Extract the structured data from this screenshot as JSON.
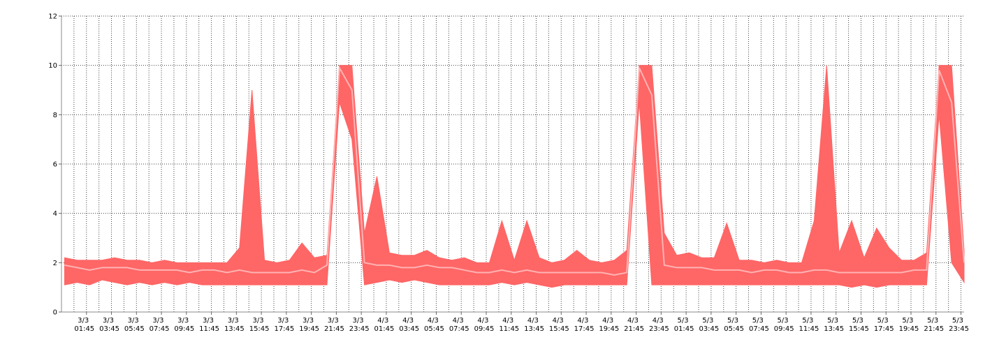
{
  "chart_data": {
    "type": "band",
    "x": [
      0,
      1,
      2,
      3,
      4,
      5,
      6,
      7,
      8,
      9,
      10,
      11,
      12,
      13,
      14,
      15,
      16,
      17,
      18,
      19,
      20,
      21,
      22,
      23,
      24,
      25,
      26,
      27,
      28,
      29,
      30,
      31,
      32,
      33,
      34,
      35,
      36,
      37,
      38,
      39,
      40,
      41,
      42,
      43,
      44,
      45,
      46,
      47,
      48,
      49,
      50,
      51,
      52,
      53,
      54,
      55,
      56,
      57,
      58,
      59,
      60,
      61,
      62,
      63,
      64,
      65,
      66,
      67,
      68,
      69,
      70,
      71,
      72
    ],
    "band": {
      "color": "#ff6666",
      "upper": [
        2.2,
        2.1,
        2.1,
        2.1,
        2.2,
        2.1,
        2.1,
        2.0,
        2.1,
        2.0,
        2.0,
        2.0,
        2.0,
        2.0,
        2.6,
        9.0,
        2.1,
        2.0,
        2.1,
        2.8,
        2.2,
        2.3,
        10,
        10,
        3.2,
        5.5,
        2.4,
        2.3,
        2.3,
        2.5,
        2.2,
        2.1,
        2.2,
        2.0,
        2.0,
        3.7,
        2.1,
        3.7,
        2.2,
        2.0,
        2.1,
        2.5,
        2.1,
        2.0,
        2.1,
        2.5,
        10,
        10,
        3.2,
        2.3,
        2.4,
        2.2,
        2.2,
        3.6,
        2.1,
        2.1,
        2.0,
        2.1,
        2.0,
        2.0,
        3.7,
        10,
        2.4,
        3.7,
        2.2,
        3.4,
        2.6,
        2.1,
        2.1,
        2.4,
        10,
        10,
        2.5
      ],
      "lower": [
        1.1,
        1.2,
        1.1,
        1.3,
        1.2,
        1.1,
        1.2,
        1.1,
        1.2,
        1.1,
        1.2,
        1.1,
        1.1,
        1.1,
        1.1,
        1.1,
        1.1,
        1.1,
        1.1,
        1.1,
        1.1,
        1.1,
        8.5,
        7.0,
        1.1,
        1.2,
        1.3,
        1.2,
        1.3,
        1.2,
        1.1,
        1.1,
        1.1,
        1.1,
        1.1,
        1.2,
        1.1,
        1.2,
        1.1,
        1.0,
        1.1,
        1.1,
        1.1,
        1.1,
        1.1,
        1.1,
        8.5,
        1.1,
        1.1,
        1.1,
        1.1,
        1.1,
        1.1,
        1.1,
        1.1,
        1.1,
        1.1,
        1.1,
        1.1,
        1.1,
        1.1,
        1.1,
        1.1,
        1.0,
        1.1,
        1.0,
        1.1,
        1.1,
        1.1,
        1.1,
        8.0,
        2.0,
        1.2
      ]
    },
    "series": [
      {
        "color": "#ffb3b3",
        "values": [
          1.9,
          1.8,
          1.7,
          1.8,
          1.8,
          1.8,
          1.7,
          1.7,
          1.7,
          1.7,
          1.6,
          1.7,
          1.7,
          1.6,
          1.7,
          1.6,
          1.6,
          1.6,
          1.6,
          1.7,
          1.6,
          1.9,
          9.9,
          9.0,
          2.0,
          1.9,
          1.9,
          1.8,
          1.8,
          1.9,
          1.8,
          1.8,
          1.7,
          1.6,
          1.6,
          1.7,
          1.6,
          1.7,
          1.6,
          1.6,
          1.6,
          1.6,
          1.6,
          1.6,
          1.5,
          1.6,
          9.9,
          8.8,
          1.9,
          1.8,
          1.8,
          1.8,
          1.7,
          1.7,
          1.7,
          1.6,
          1.7,
          1.7,
          1.6,
          1.6,
          1.7,
          1.7,
          1.6,
          1.6,
          1.6,
          1.6,
          1.6,
          1.6,
          1.7,
          1.7,
          9.8,
          8.5,
          2.0
        ]
      }
    ],
    "xlim": [
      -0.25,
      72
    ],
    "xticks": [
      {
        "value": 1.75,
        "label": "3/3 01:45"
      },
      {
        "value": 3.75,
        "label": "3/3 03:45"
      },
      {
        "value": 5.75,
        "label": "3/3 05:45"
      },
      {
        "value": 7.75,
        "label": "3/3 07:45"
      },
      {
        "value": 9.75,
        "label": "3/3 09:45"
      },
      {
        "value": 11.75,
        "label": "3/3 11:45"
      },
      {
        "value": 13.75,
        "label": "3/3 13:45"
      },
      {
        "value": 15.75,
        "label": "3/3 15:45"
      },
      {
        "value": 17.75,
        "label": "3/3 17:45"
      },
      {
        "value": 19.75,
        "label": "3/3 19:45"
      },
      {
        "value": 21.75,
        "label": "3/3 21:45"
      },
      {
        "value": 23.75,
        "label": "3/3 23:45"
      },
      {
        "value": 25.75,
        "label": "4/3 01:45"
      },
      {
        "value": 27.75,
        "label": "4/3 03:45"
      },
      {
        "value": 29.75,
        "label": "4/3 05:45"
      },
      {
        "value": 31.75,
        "label": "4/3 07:45"
      },
      {
        "value": 33.75,
        "label": "4/3 09:45"
      },
      {
        "value": 35.75,
        "label": "4/3 11:45"
      },
      {
        "value": 37.75,
        "label": "4/3 13:45"
      },
      {
        "value": 39.75,
        "label": "4/3 15:45"
      },
      {
        "value": 41.75,
        "label": "4/3 17:45"
      },
      {
        "value": 43.75,
        "label": "4/3 19:45"
      },
      {
        "value": 45.75,
        "label": "4/3 21:45"
      },
      {
        "value": 47.75,
        "label": "4/3 23:45"
      },
      {
        "value": 49.75,
        "label": "5/3 01:45"
      },
      {
        "value": 51.75,
        "label": "5/3 03:45"
      },
      {
        "value": 53.75,
        "label": "5/3 05:45"
      },
      {
        "value": 55.75,
        "label": "5/3 07:45"
      },
      {
        "value": 57.75,
        "label": "5/3 09:45"
      },
      {
        "value": 59.75,
        "label": "5/3 11:45"
      },
      {
        "value": 61.75,
        "label": "5/3 13:45"
      },
      {
        "value": 63.75,
        "label": "5/3 15:45"
      },
      {
        "value": 65.75,
        "label": "5/3 17:45"
      },
      {
        "value": 67.75,
        "label": "5/3 19:45"
      },
      {
        "value": 69.75,
        "label": "5/3 21:45"
      },
      {
        "value": 71.75,
        "label": "5/3 23:45"
      }
    ],
    "ylim": [
      0,
      12
    ],
    "yticks": [
      0,
      2,
      4,
      6,
      8,
      10,
      12
    ],
    "grid": true
  }
}
